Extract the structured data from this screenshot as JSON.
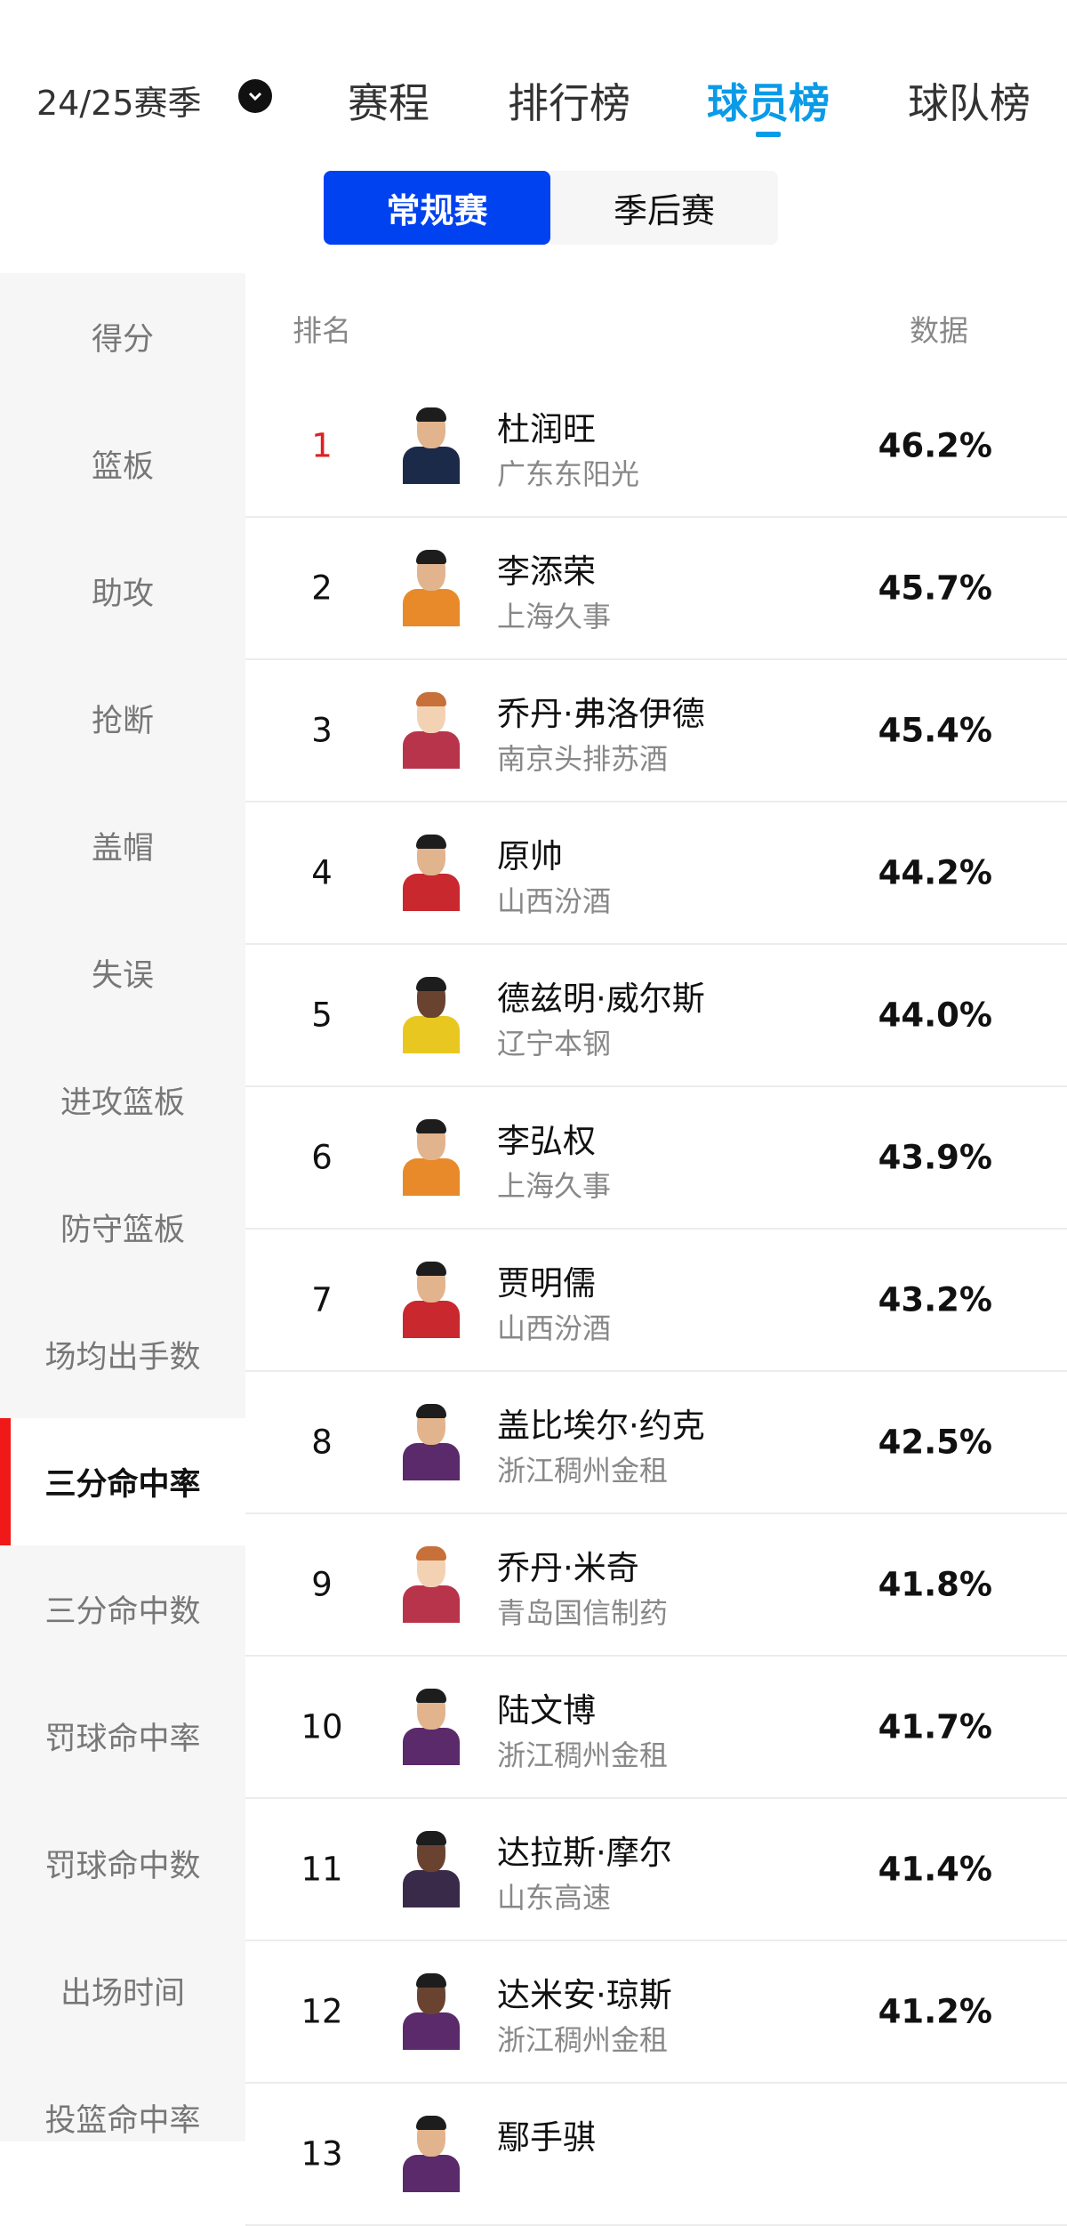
{
  "header": {
    "season": "24/25赛季",
    "season_icon": "chevron-down-icon",
    "tabs": [
      {
        "label": "赛程",
        "active": false
      },
      {
        "label": "排行榜",
        "active": false
      },
      {
        "label": "球员榜",
        "active": true
      },
      {
        "label": "球队榜",
        "active": false
      }
    ],
    "accent_color": "#0a9be8"
  },
  "segment": {
    "options": [
      {
        "label": "常规赛",
        "active": true
      },
      {
        "label": "季后赛",
        "active": false
      }
    ],
    "active_color": "#0042f0"
  },
  "sidebar": {
    "items": [
      {
        "label": "得分"
      },
      {
        "label": "篮板"
      },
      {
        "label": "助攻"
      },
      {
        "label": "抢断"
      },
      {
        "label": "盖帽"
      },
      {
        "label": "失误"
      },
      {
        "label": "进攻篮板"
      },
      {
        "label": "防守篮板"
      },
      {
        "label": "场均出手数"
      },
      {
        "label": "三分命中率",
        "active": true
      },
      {
        "label": "三分命中数"
      },
      {
        "label": "罚球命中率"
      },
      {
        "label": "罚球命中数"
      },
      {
        "label": "出场时间"
      },
      {
        "label": "投篮命中率"
      }
    ],
    "active_marker_color": "#f01818"
  },
  "table": {
    "col_rank": "排名",
    "col_value": "数据",
    "rows": [
      {
        "rank": "1",
        "name": "杜润旺",
        "team": "广东东阳光",
        "value": "46.2%",
        "jersey": "#1c2a4a"
      },
      {
        "rank": "2",
        "name": "李添荣",
        "team": "上海久事",
        "value": "45.7%",
        "jersey": "#e88a2a"
      },
      {
        "rank": "3",
        "name": "乔丹·弗洛伊德",
        "team": "南京头排苏酒",
        "value": "45.4%",
        "jersey": "#b8344a",
        "cartoon": true
      },
      {
        "rank": "4",
        "name": "原帅",
        "team": "山西汾酒",
        "value": "44.2%",
        "jersey": "#c8282e"
      },
      {
        "rank": "5",
        "name": "德兹明·威尔斯",
        "team": "辽宁本钢",
        "value": "44.0%",
        "jersey": "#e8c820",
        "dark": true
      },
      {
        "rank": "6",
        "name": "李弘权",
        "team": "上海久事",
        "value": "43.9%",
        "jersey": "#e88a2a"
      },
      {
        "rank": "7",
        "name": "贾明儒",
        "team": "山西汾酒",
        "value": "43.2%",
        "jersey": "#c8282e"
      },
      {
        "rank": "8",
        "name": "盖比埃尔·约克",
        "team": "浙江稠州金租",
        "value": "42.5%",
        "jersey": "#5a2a6a"
      },
      {
        "rank": "9",
        "name": "乔丹·米奇",
        "team": "青岛国信制药",
        "value": "41.8%",
        "jersey": "#b8344a",
        "cartoon": true
      },
      {
        "rank": "10",
        "name": "陆文博",
        "team": "浙江稠州金租",
        "value": "41.7%",
        "jersey": "#5a2a6a"
      },
      {
        "rank": "11",
        "name": "达拉斯·摩尔",
        "team": "山东高速",
        "value": "41.4%",
        "jersey": "#3a2a4a",
        "dark": true
      },
      {
        "rank": "12",
        "name": "达米安·琼斯",
        "team": "浙江稠州金租",
        "value": "41.2%",
        "jersey": "#5a2a6a",
        "dark": true
      },
      {
        "rank": "13",
        "name": "鄢手骐",
        "team": "",
        "value": "",
        "jersey": "#5a2a6a"
      }
    ]
  }
}
